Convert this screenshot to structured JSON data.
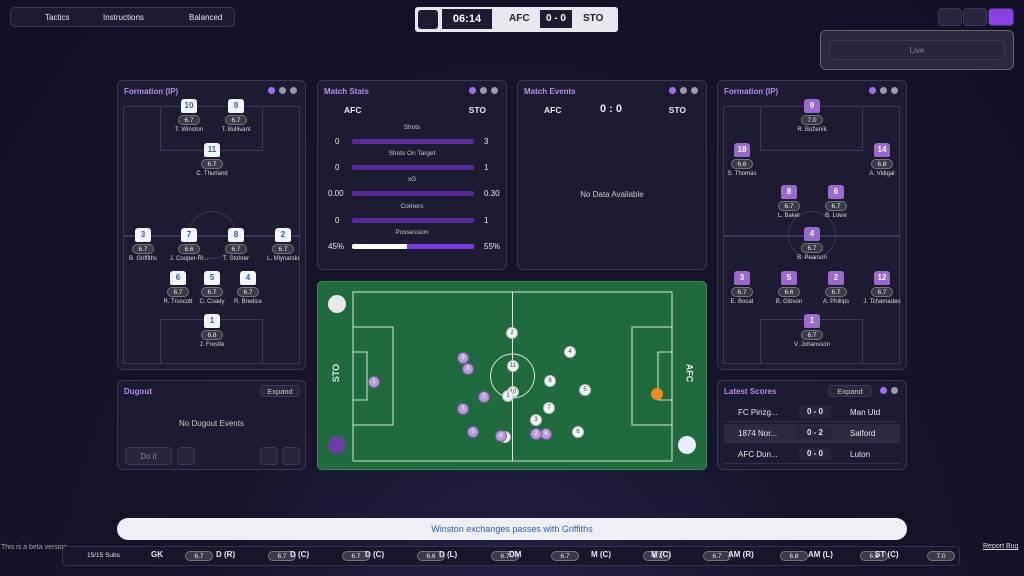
{
  "toolbar": {
    "tactics": "Tactics",
    "instructions": "Instructions",
    "mentality": "Balanced"
  },
  "scoreboard": {
    "time": "06:14",
    "home": "AFC",
    "score": "0 - 0",
    "away": "STO"
  },
  "playback": {
    "live": "Live"
  },
  "formation_left": {
    "title": "Formation (IP)",
    "players": [
      {
        "number": "10",
        "rating": "6.7",
        "name": "T. Winston"
      },
      {
        "number": "9",
        "rating": "6.7",
        "name": "T. Bullivant"
      },
      {
        "number": "11",
        "rating": "6.7",
        "name": "C. Thurland"
      },
      {
        "number": "3",
        "rating": "6.7",
        "name": "B. Griffiths"
      },
      {
        "number": "7",
        "rating": "6.6",
        "name": "J. Cooper-Ri..."
      },
      {
        "number": "8",
        "rating": "6.7",
        "name": "T. Stohrer"
      },
      {
        "number": "2",
        "rating": "6.7",
        "name": "L. Mlynarski"
      },
      {
        "number": "6",
        "rating": "6.7",
        "name": "R. Truscott"
      },
      {
        "number": "5",
        "rating": "6.7",
        "name": "C. Coady"
      },
      {
        "number": "4",
        "rating": "6.7",
        "name": "R. Bredice"
      },
      {
        "number": "1",
        "rating": "6.8",
        "name": "J. Frestle"
      }
    ]
  },
  "match_stats": {
    "title": "Match Stats",
    "home": "AFC",
    "away": "STO",
    "rows": [
      {
        "label": "Shots",
        "home": "0",
        "away": "3"
      },
      {
        "label": "Shots On Target",
        "home": "0",
        "away": "1"
      },
      {
        "label": "xG",
        "home": "0.00",
        "away": "0.30"
      },
      {
        "label": "Corners",
        "home": "0",
        "away": "1"
      },
      {
        "label": "Possession",
        "home": "45%",
        "away": "55%"
      }
    ]
  },
  "match_events": {
    "title": "Match Events",
    "home": "AFC",
    "score": "0 : 0",
    "away": "STO",
    "empty": "No Data Available"
  },
  "formation_right": {
    "title": "Formation (IP)",
    "players": [
      {
        "number": "9",
        "rating": "7.0",
        "name": "R. Boženík"
      },
      {
        "number": "18",
        "rating": "6.6",
        "name": "S. Thomas"
      },
      {
        "number": "14",
        "rating": "6.8",
        "name": "A. Vidigal"
      },
      {
        "number": "8",
        "rating": "6.7",
        "name": "L. Baker"
      },
      {
        "number": "6",
        "rating": "6.7",
        "name": "B. Lowe"
      },
      {
        "number": "4",
        "rating": "6.7",
        "name": "B. Pearson"
      },
      {
        "number": "3",
        "rating": "6.7",
        "name": "E. Bocat"
      },
      {
        "number": "5",
        "rating": "6.6",
        "name": "B. Gibson"
      },
      {
        "number": "2",
        "rating": "6.7",
        "name": "A. Phillips"
      },
      {
        "number": "12",
        "rating": "6.7",
        "name": "J. Tchamadeu"
      },
      {
        "number": "1",
        "rating": "6.7",
        "name": "V. Johansson"
      }
    ]
  },
  "pitch": {
    "left_label": "STO",
    "right_label": "AFC",
    "markers": [
      {
        "label": "1",
        "team": "away"
      },
      {
        "label": "2",
        "team": "home"
      },
      {
        "label": "4",
        "team": "home"
      },
      {
        "label": "8",
        "team": "home"
      },
      {
        "label": "5",
        "team": "home"
      },
      {
        "label": "7",
        "team": "home"
      },
      {
        "label": "6",
        "team": "home"
      },
      {
        "label": "3",
        "team": "home"
      },
      {
        "label": "11",
        "team": "home"
      },
      {
        "label": "10",
        "team": "home"
      },
      {
        "label": "9",
        "team": "home"
      },
      {
        "label": "1",
        "team": "home"
      },
      {
        "label": "9",
        "team": "away"
      },
      {
        "label": "8",
        "team": "away"
      },
      {
        "label": "7",
        "team": "away"
      },
      {
        "label": "3",
        "team": "away"
      },
      {
        "label": "5",
        "team": "away"
      },
      {
        "label": "4",
        "team": "away"
      },
      {
        "label": "6",
        "team": "away"
      },
      {
        "label": "2",
        "team": "away"
      }
    ]
  },
  "dugout": {
    "title": "Dugout",
    "expand": "Expand",
    "empty": "No Dugout Events",
    "action": "Do it"
  },
  "latest_scores": {
    "title": "Latest Scores",
    "expand": "Expand",
    "rows": [
      {
        "home": "FC Pinzg...",
        "score": "0 - 0",
        "away": "Man Utd"
      },
      {
        "home": "1874 Nor...",
        "score": "0 - 2",
        "away": "Salford"
      },
      {
        "home": "AFC Dun...",
        "score": "0 - 0",
        "away": "Luton"
      }
    ]
  },
  "commentary": "Winston exchanges passes with Griffiths",
  "footer": {
    "beta": "This is a beta version",
    "subs": "15/15 Subs",
    "report": "Report Bug",
    "positions": [
      {
        "pos": "GK",
        "rating": "6.7"
      },
      {
        "pos": "D (R)",
        "rating": "6.7"
      },
      {
        "pos": "D (C)",
        "rating": "6.7"
      },
      {
        "pos": "D (C)",
        "rating": "6.6"
      },
      {
        "pos": "D (L)",
        "rating": "6.7"
      },
      {
        "pos": "DM",
        "rating": "6.7"
      },
      {
        "pos": "M (C)",
        "rating": "6.7"
      },
      {
        "pos": "M (C)",
        "rating": "6.7"
      },
      {
        "pos": "AM (R)",
        "rating": "6.8"
      },
      {
        "pos": "AM (L)",
        "rating": "6.6"
      },
      {
        "pos": "ST (C)",
        "rating": "7.0"
      }
    ]
  }
}
